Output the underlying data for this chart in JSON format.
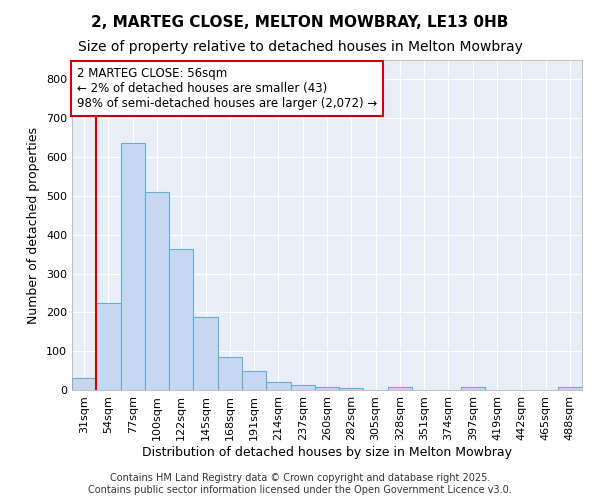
{
  "title": "2, MARTEG CLOSE, MELTON MOWBRAY, LE13 0HB",
  "subtitle": "Size of property relative to detached houses in Melton Mowbray",
  "xlabel": "Distribution of detached houses by size in Melton Mowbray",
  "ylabel": "Number of detached properties",
  "bins": [
    "31sqm",
    "54sqm",
    "77sqm",
    "100sqm",
    "122sqm",
    "145sqm",
    "168sqm",
    "191sqm",
    "214sqm",
    "237sqm",
    "260sqm",
    "282sqm",
    "305sqm",
    "328sqm",
    "351sqm",
    "374sqm",
    "397sqm",
    "419sqm",
    "442sqm",
    "465sqm",
    "488sqm"
  ],
  "values": [
    30,
    225,
    635,
    510,
    362,
    188,
    85,
    50,
    20,
    13,
    7,
    5,
    0,
    8,
    0,
    0,
    7,
    0,
    0,
    0,
    8
  ],
  "bar_color": "#c5d8f0",
  "bar_edge_color": "#6aabd2",
  "vline_x_idx": 1,
  "vline_color": "#cc0000",
  "annotation_text": "2 MARTEG CLOSE: 56sqm\n← 2% of detached houses are smaller (43)\n98% of semi-detached houses are larger (2,072) →",
  "annotation_box_facecolor": "#ffffff",
  "annotation_box_edgecolor": "#cc0000",
  "ylim": [
    0,
    850
  ],
  "yticks": [
    0,
    100,
    200,
    300,
    400,
    500,
    600,
    700,
    800
  ],
  "plot_bg_color": "#e8eef8",
  "fig_bg_color": "#ffffff",
  "grid_color": "#ffffff",
  "footnote": "Contains HM Land Registry data © Crown copyright and database right 2025.\nContains public sector information licensed under the Open Government Licence v3.0.",
  "title_fontsize": 11,
  "subtitle_fontsize": 10,
  "xlabel_fontsize": 9,
  "ylabel_fontsize": 9,
  "tick_fontsize": 8,
  "annotation_fontsize": 8.5,
  "footnote_fontsize": 7
}
